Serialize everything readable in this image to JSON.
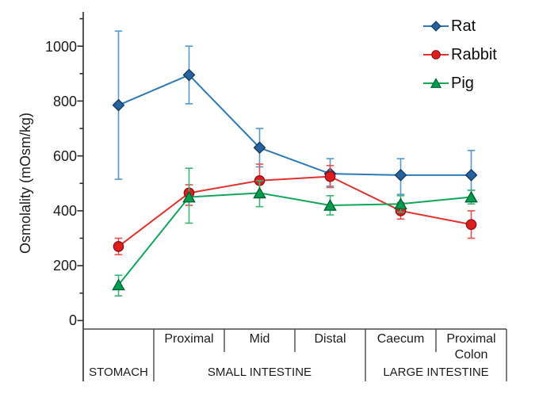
{
  "chart_data": {
    "type": "line",
    "title": "",
    "ylabel": "Osmolality (mOsm/kg)",
    "ylim": [
      0,
      1100
    ],
    "grid": false,
    "legend_position": "top-right",
    "ytick_labels": [
      "0",
      "200",
      "400",
      "600",
      "800",
      "1000"
    ],
    "categories": [
      "Stomach",
      "Proximal",
      "Mid",
      "Distal",
      "Caecum",
      "Proximal Colon"
    ],
    "x_axis_table": {
      "segment_labels": [
        "Proximal",
        "Mid",
        "Distal",
        "Caecum",
        "Proximal Colon"
      ],
      "region_labels": [
        "STOMACH",
        "SMALL INTESTINE",
        "LARGE INTESTINE"
      ]
    },
    "series": [
      {
        "name": "Rat",
        "marker": "diamond",
        "color": "#2e79b8",
        "marker_fill": "#25629e",
        "marker_edge": "#143a5e",
        "error_color": "#5598cc",
        "values": [
          785,
          895,
          630,
          535,
          530,
          530
        ],
        "err_low": [
          515,
          790,
          560,
          490,
          460,
          475
        ],
        "err_high": [
          1055,
          1000,
          700,
          590,
          590,
          620
        ]
      },
      {
        "name": "Rabbit",
        "marker": "circle",
        "color": "#e3312d",
        "marker_fill": "#dd1e1e",
        "marker_edge": "#8f0f12",
        "error_color": "#e4504c",
        "values": [
          270,
          465,
          510,
          525,
          400,
          350
        ],
        "err_low": [
          240,
          420,
          450,
          485,
          370,
          300
        ],
        "err_high": [
          300,
          495,
          570,
          565,
          430,
          400
        ]
      },
      {
        "name": "Pig",
        "marker": "triangle",
        "color": "#11a658",
        "marker_fill": "#009c4f",
        "marker_edge": "#00602f",
        "error_color": "#3cb478",
        "values": [
          130,
          450,
          465,
          420,
          425,
          450
        ],
        "err_low": [
          90,
          355,
          415,
          385,
          395,
          425
        ],
        "err_high": [
          165,
          555,
          510,
          455,
          455,
          475
        ]
      }
    ],
    "axis_color": "#2b2b2b",
    "table_line_color": "#4a4a4a"
  }
}
